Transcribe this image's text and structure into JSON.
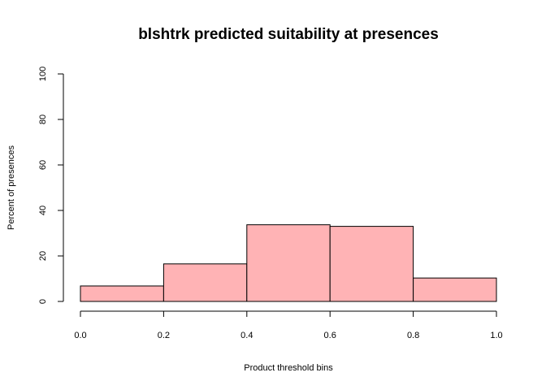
{
  "chart_data": {
    "type": "bar",
    "title": "blshtrk predicted suitability at presences",
    "xlabel": "Product threshold bins",
    "ylabel": "Percent of presences",
    "bins": [
      {
        "from": 0.0,
        "to": 0.2,
        "value": 6.8
      },
      {
        "from": 0.2,
        "to": 0.4,
        "value": 16.5
      },
      {
        "from": 0.4,
        "to": 0.6,
        "value": 33.7
      },
      {
        "from": 0.6,
        "to": 0.8,
        "value": 33.0
      },
      {
        "from": 0.8,
        "to": 1.0,
        "value": 10.3
      }
    ],
    "xlim": [
      0,
      1
    ],
    "ylim": [
      0,
      100
    ],
    "x_ticks": [
      "0.0",
      "0.2",
      "0.4",
      "0.6",
      "0.8",
      "1.0"
    ],
    "y_ticks": [
      "0",
      "20",
      "40",
      "60",
      "80",
      "100"
    ],
    "bar_color": "#ffb3b5",
    "grid": false
  }
}
